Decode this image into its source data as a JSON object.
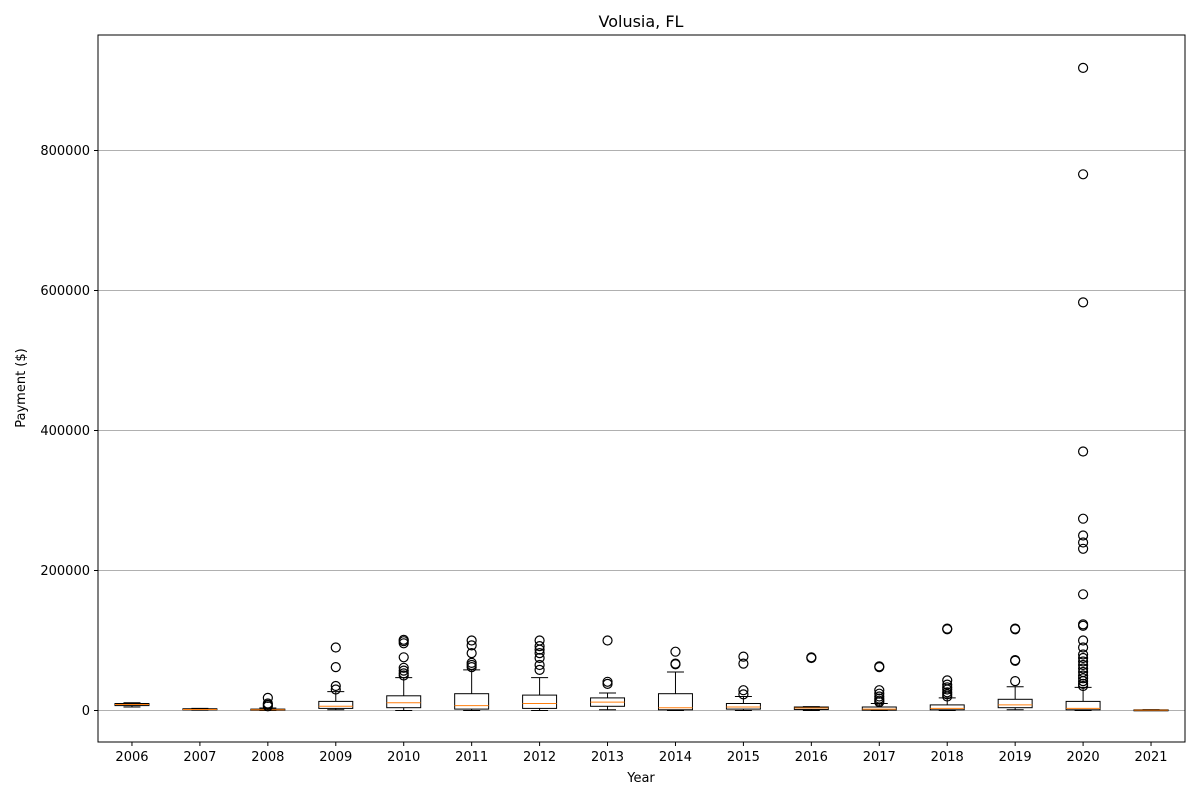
{
  "chart_data": {
    "type": "box",
    "title": "Volusia, FL",
    "xlabel": "Year",
    "ylabel": "Payment ($)",
    "ylim": [
      -45000,
      965000
    ],
    "yticks": [
      0,
      200000,
      400000,
      600000,
      800000
    ],
    "ytick_labels": [
      "0",
      "200000",
      "400000",
      "600000",
      "800000"
    ],
    "grid": "y",
    "colors": {
      "box": "#000000",
      "median": "#ff7f0e",
      "grid": "#b0b0b0"
    },
    "categories": [
      "2006",
      "2007",
      "2008",
      "2009",
      "2010",
      "2011",
      "2012",
      "2013",
      "2014",
      "2015",
      "2016",
      "2017",
      "2018",
      "2019",
      "2020",
      "2021"
    ],
    "boxes": [
      {
        "year": "2006",
        "whislo": 5000,
        "q1": 7000,
        "med": 8500,
        "q3": 10000,
        "whishi": 11000,
        "fliers": []
      },
      {
        "year": "2007",
        "whislo": 500,
        "q1": 1000,
        "med": 1500,
        "q3": 2500,
        "whishi": 3000,
        "fliers": []
      },
      {
        "year": "2008",
        "whislo": 0,
        "q1": 500,
        "med": 1000,
        "q3": 2000,
        "whishi": 3500,
        "fliers": [
          6000,
          8000,
          10000,
          18000
        ]
      },
      {
        "year": "2009",
        "whislo": 1000,
        "q1": 3000,
        "med": 6000,
        "q3": 13000,
        "whishi": 27000,
        "fliers": [
          30000,
          35000,
          62000,
          90000
        ]
      },
      {
        "year": "2010",
        "whislo": 0,
        "q1": 4000,
        "med": 11000,
        "q3": 21000,
        "whishi": 47000,
        "fliers": [
          50000,
          53000,
          57000,
          61000,
          76000,
          96000,
          99000,
          101000
        ]
      },
      {
        "year": "2011",
        "whislo": 0,
        "q1": 2000,
        "med": 7000,
        "q3": 24000,
        "whishi": 58000,
        "fliers": [
          62000,
          65000,
          68000,
          82000,
          93000,
          100000
        ]
      },
      {
        "year": "2012",
        "whislo": 0,
        "q1": 3000,
        "med": 10000,
        "q3": 22000,
        "whishi": 47000,
        "fliers": [
          58000,
          65000,
          75000,
          82000,
          87000,
          92000,
          100000
        ]
      },
      {
        "year": "2013",
        "whislo": 1000,
        "q1": 6000,
        "med": 12000,
        "q3": 18000,
        "whishi": 25000,
        "fliers": [
          38000,
          41000,
          100000
        ]
      },
      {
        "year": "2014",
        "whislo": 0,
        "q1": 1000,
        "med": 4000,
        "q3": 24000,
        "whishi": 55000,
        "fliers": [
          66000,
          67000,
          84000
        ]
      },
      {
        "year": "2015",
        "whislo": 0,
        "q1": 2000,
        "med": 5000,
        "q3": 10000,
        "whishi": 20000,
        "fliers": [
          23000,
          29000,
          67000,
          77000
        ]
      },
      {
        "year": "2016",
        "whislo": 0,
        "q1": 1500,
        "med": 3500,
        "q3": 5000,
        "whishi": 5500,
        "fliers": [
          75000,
          76000
        ]
      },
      {
        "year": "2017",
        "whislo": 0,
        "q1": 500,
        "med": 2000,
        "q3": 5000,
        "whishi": 10000,
        "fliers": [
          12000,
          14000,
          17000,
          20000,
          24000,
          29000,
          62000,
          63000
        ]
      },
      {
        "year": "2018",
        "whislo": 0,
        "q1": 1000,
        "med": 3000,
        "q3": 8000,
        "whishi": 18000,
        "fliers": [
          20000,
          23000,
          26000,
          30000,
          33000,
          37000,
          43000,
          116000,
          117000
        ]
      },
      {
        "year": "2019",
        "whislo": 1000,
        "q1": 4000,
        "med": 8000,
        "q3": 16000,
        "whishi": 34000,
        "fliers": [
          42000,
          71000,
          72000,
          116000,
          117000
        ]
      },
      {
        "year": "2020",
        "whislo": 0,
        "q1": 1000,
        "med": 3000,
        "q3": 13000,
        "whishi": 33000,
        "fliers": [
          35000,
          38000,
          42000,
          46000,
          50000,
          55000,
          60000,
          65000,
          70000,
          75000,
          80000,
          90000,
          100000,
          121000,
          123000,
          166000,
          231000,
          240000,
          250000,
          274000,
          370000,
          583000,
          766000,
          918000
        ]
      },
      {
        "year": "2021",
        "whislo": 0,
        "q1": 0,
        "med": 500,
        "q3": 1000,
        "whishi": 1200,
        "fliers": []
      }
    ]
  }
}
